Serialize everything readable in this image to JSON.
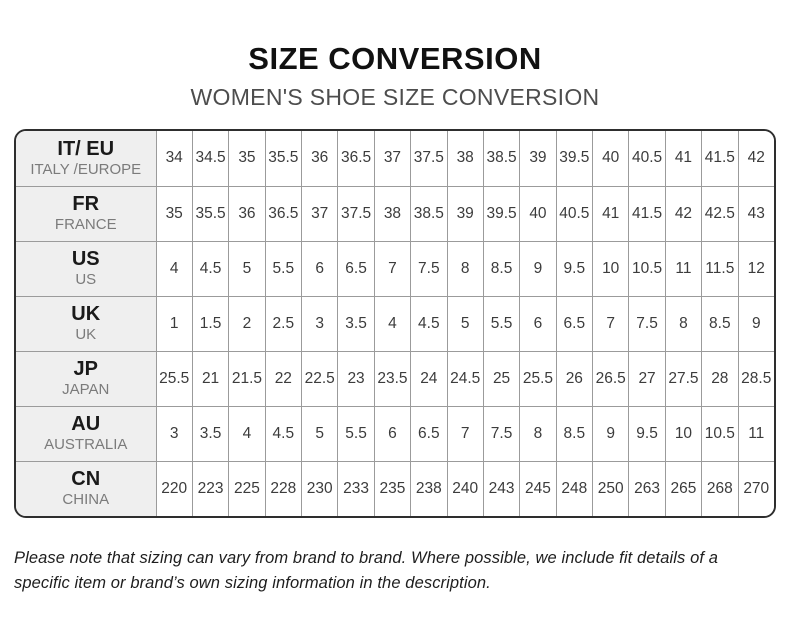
{
  "page": {
    "title": "SIZE CONVERSION",
    "subtitle": "WOMEN'S SHOE SIZE CONVERSION",
    "footnote": "Please note that sizing can vary from brand to brand. Where possible, we include fit details of a specific item or brand’s own sizing information in the description."
  },
  "colors": {
    "title_text": "#111111",
    "subtitle_text": "#4d4d4d",
    "table_outer_border": "#2e2e2e",
    "table_inner_border": "#9b9b9b",
    "header_column_bg": "#efefef",
    "row_code_text": "#1a1a1a",
    "row_name_text": "#7b7b7b",
    "cell_text": "#3c3c3c",
    "page_bg": "#ffffff"
  },
  "chart_data": {
    "type": "table",
    "title": "SIZE CONVERSION",
    "subtitle": "WOMEN'S SHOE SIZE CONVERSION",
    "rows": [
      {
        "code": "IT/ EU",
        "name": "ITALY /EUROPE",
        "values": [
          "34",
          "34.5",
          "35",
          "35.5",
          "36",
          "36.5",
          "37",
          "37.5",
          "38",
          "38.5",
          "39",
          "39.5",
          "40",
          "40.5",
          "41",
          "41.5",
          "42"
        ]
      },
      {
        "code": "FR",
        "name": "FRANCE",
        "values": [
          "35",
          "35.5",
          "36",
          "36.5",
          "37",
          "37.5",
          "38",
          "38.5",
          "39",
          "39.5",
          "40",
          "40.5",
          "41",
          "41.5",
          "42",
          "42.5",
          "43"
        ]
      },
      {
        "code": "US",
        "name": "US",
        "values": [
          "4",
          "4.5",
          "5",
          "5.5",
          "6",
          "6.5",
          "7",
          "7.5",
          "8",
          "8.5",
          "9",
          "9.5",
          "10",
          "10.5",
          "11",
          "11.5",
          "12"
        ]
      },
      {
        "code": "UK",
        "name": "UK",
        "values": [
          "1",
          "1.5",
          "2",
          "2.5",
          "3",
          "3.5",
          "4",
          "4.5",
          "5",
          "5.5",
          "6",
          "6.5",
          "7",
          "7.5",
          "8",
          "8.5",
          "9"
        ]
      },
      {
        "code": "JP",
        "name": "JAPAN",
        "values": [
          "25.5",
          "21",
          "21.5",
          "22",
          "22.5",
          "23",
          "23.5",
          "24",
          "24.5",
          "25",
          "25.5",
          "26",
          "26.5",
          "27",
          "27.5",
          "28",
          "28.5"
        ]
      },
      {
        "code": "AU",
        "name": "AUSTRALIA",
        "values": [
          "3",
          "3.5",
          "4",
          "4.5",
          "5",
          "5.5",
          "6",
          "6.5",
          "7",
          "7.5",
          "8",
          "8.5",
          "9",
          "9.5",
          "10",
          "10.5",
          "11"
        ]
      },
      {
        "code": "CN",
        "name": "CHINA",
        "values": [
          "220",
          "223",
          "225",
          "228",
          "230",
          "233",
          "235",
          "238",
          "240",
          "243",
          "245",
          "248",
          "250",
          "263",
          "265",
          "268",
          "270"
        ]
      }
    ]
  }
}
